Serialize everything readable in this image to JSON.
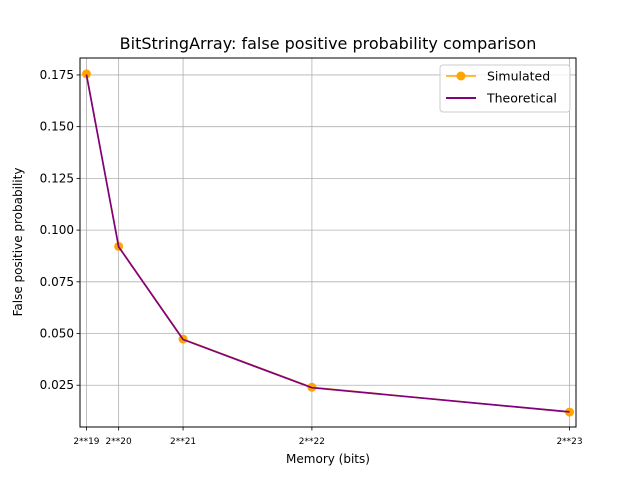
{
  "chart_data": {
    "type": "line",
    "title": "BitStringArray: false positive probability comparison",
    "xlabel": "Memory (bits)",
    "ylabel": "False positive probability",
    "x": [
      524288,
      1048576,
      2097152,
      4194304,
      8388608
    ],
    "x_tick_labels": [
      "2**19",
      "2**20",
      "2**21",
      "2**22",
      "2**23"
    ],
    "xlim": [
      419430,
      8493466
    ],
    "ylim": [
      0.0048,
      0.1832
    ],
    "y_ticks": [
      0.025,
      0.05,
      0.075,
      0.1,
      0.125,
      0.15,
      0.175
    ],
    "y_tick_labels": [
      "0.025",
      "0.050",
      "0.075",
      "0.100",
      "0.125",
      "0.150",
      "0.175"
    ],
    "grid": true,
    "legend_position": "top-right",
    "series": [
      {
        "name": "Simulated",
        "color": "#FFA500",
        "marker": "circle",
        "values": [
          0.1755,
          0.0921,
          0.0473,
          0.024,
          0.012
        ]
      },
      {
        "name": "Theoretical",
        "color": "#800080",
        "marker": "none",
        "values": [
          0.1752,
          0.0919,
          0.0471,
          0.0238,
          0.0121
        ]
      }
    ]
  }
}
